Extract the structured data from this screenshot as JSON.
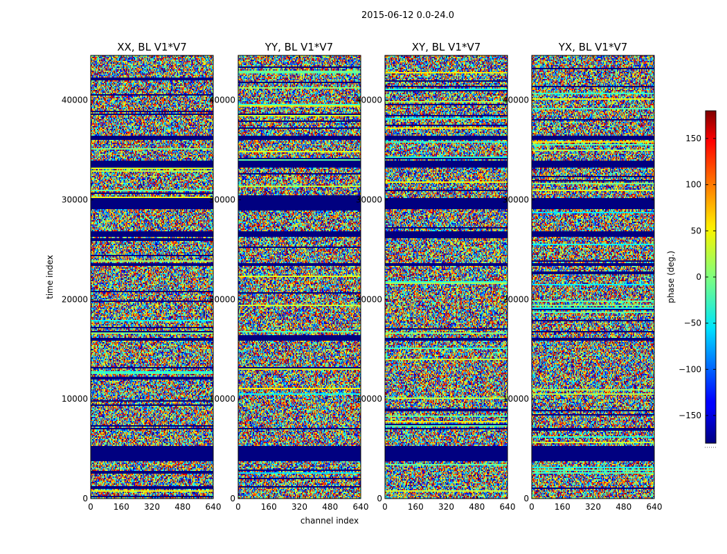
{
  "chart_data": {
    "type": "heatmap",
    "suptitle": "2015-06-12 0.0-24.0",
    "xlabel": "channel index",
    "ylabel": "time index",
    "xlim": [
      0,
      640
    ],
    "ylim": [
      0,
      44500
    ],
    "x_ticks": [
      0,
      160,
      320,
      480,
      640
    ],
    "y_ticks": [
      0,
      10000,
      20000,
      30000,
      40000
    ],
    "panels": [
      {
        "title": "XX, BL V1*V7"
      },
      {
        "title": "YY, BL V1*V7"
      },
      {
        "title": "XY, BL V1*V7"
      },
      {
        "title": "YX, BL V1*V7"
      }
    ],
    "colorbar": {
      "label": "phase (deg.)",
      "range": [
        -180,
        180
      ],
      "ticks": [
        -150,
        -100,
        -50,
        0,
        50,
        100,
        150
      ],
      "colormap": "jet"
    },
    "flagged_rows_phase": -180,
    "flagged_time_bands": [
      [
        3800,
        5300
      ],
      [
        6900,
        7100
      ],
      [
        15900,
        16100
      ],
      [
        23300,
        23700
      ],
      [
        26300,
        26900
      ],
      [
        29100,
        30200
      ],
      [
        33300,
        33900
      ],
      [
        36000,
        36500
      ]
    ],
    "colors": {
      "jet_low": "#00007f",
      "jet_mid": "#7fff7f",
      "jet_high": "#7f0000"
    }
  }
}
